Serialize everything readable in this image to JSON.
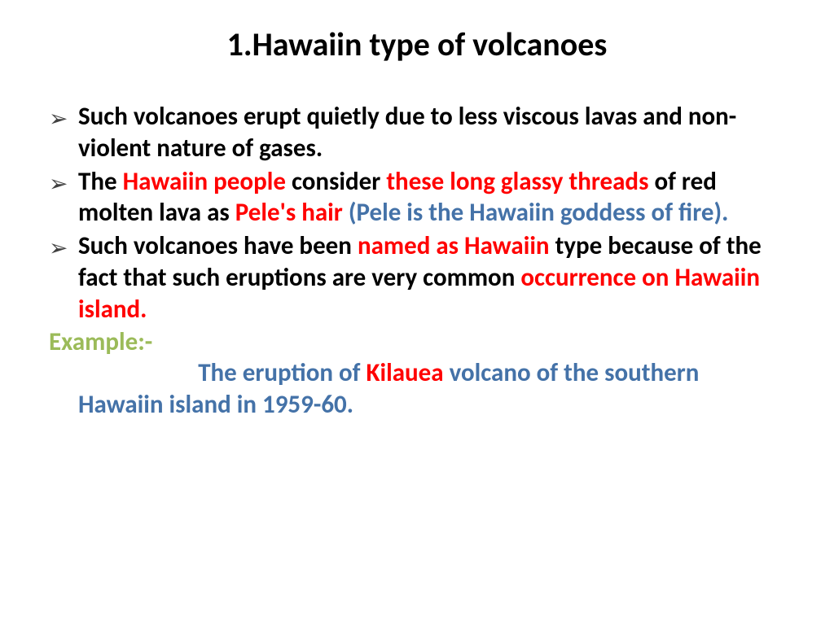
{
  "colors": {
    "black": "#000000",
    "red": "#ff0000",
    "blue": "#4472a8",
    "olive": "#9bbb59",
    "bullet": "#404040"
  },
  "fontsize": {
    "title": 40,
    "body": 31
  },
  "title": "1.Hawaiin type of volcanoes",
  "bullets": [
    {
      "spans": [
        {
          "text": " Such volcanoes erupt quietly due to less viscous lavas and non-violent nature of gases.",
          "color": "black"
        }
      ]
    },
    {
      "spans": [
        {
          "text": "The ",
          "color": "black"
        },
        {
          "text": "Hawaiin people ",
          "color": "red"
        },
        {
          "text": "consider ",
          "color": "black"
        },
        {
          "text": "these long glassy threads ",
          "color": "red"
        },
        {
          "text": "of red molten lava as ",
          "color": "black"
        },
        {
          "text": "Pele's hair ",
          "color": "red"
        },
        {
          "text": "(Pele is the Hawaiin goddess of fire).",
          "color": "blue"
        }
      ]
    },
    {
      "spans": [
        {
          "text": "Such volcanoes have been ",
          "color": "black"
        },
        {
          "text": "named as Hawaiin ",
          "color": "red"
        },
        {
          "text": "type because of the fact that such eruptions are very common ",
          "color": "black"
        },
        {
          "text": "occurrence on Hawaiin island.",
          "color": "red"
        }
      ]
    }
  ],
  "example_label": "Example:-",
  "example": {
    "spans": [
      {
        "text": "The eruption of ",
        "color": "blue"
      },
      {
        "text": "Kilauea ",
        "color": "red"
      },
      {
        "text": "volcano of the southern Hawaiin island in 1959-60.",
        "color": "blue"
      }
    ]
  },
  "bullet_glyph": "➢"
}
